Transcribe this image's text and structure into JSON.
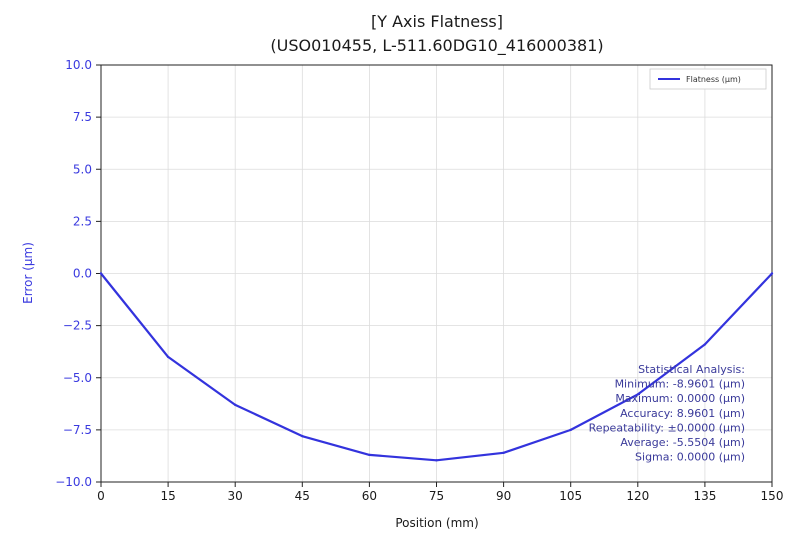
{
  "colors": {
    "series": "#3333dd",
    "y_axis_text": "#3a3adf",
    "stats_text": "#3a3a9a",
    "grid": "#dcdcdc",
    "frame": "#222222"
  },
  "chart_data": {
    "type": "line",
    "title": "[Y Axis Flatness]",
    "subtitle": "(USO010455, L-511.60DG10_416000381)",
    "xlabel": "Position (mm)",
    "ylabel": "Error (µm)",
    "xlim": [
      0,
      150
    ],
    "ylim": [
      -10,
      10
    ],
    "x_ticks": [
      0,
      15,
      30,
      45,
      60,
      75,
      90,
      105,
      120,
      135,
      150
    ],
    "y_ticks": [
      -10,
      -7.5,
      -5,
      -2.5,
      0,
      2.5,
      5,
      7.5,
      10
    ],
    "x_tick_labels": [
      "0",
      "15",
      "30",
      "45",
      "60",
      "75",
      "90",
      "105",
      "120",
      "135",
      "150"
    ],
    "y_tick_labels": [
      "−10.0",
      "−7.5",
      "−5.0",
      "−2.5",
      "0.0",
      "2.5",
      "5.0",
      "7.5",
      "10.0"
    ],
    "grid": true,
    "legend_position": "top-right",
    "series": [
      {
        "name": "Flatness (µm)",
        "x": [
          0,
          15,
          30,
          45,
          60,
          75,
          90,
          105,
          120,
          135,
          150
        ],
        "y": [
          0.0,
          -4.0,
          -6.3,
          -7.8,
          -8.7,
          -8.96,
          -8.6,
          -7.5,
          -5.8,
          -3.4,
          0.0
        ]
      }
    ],
    "annotation": {
      "position": "bottom-right",
      "lines": [
        "Statistical Analysis:",
        "Minimum: -8.9601 (µm)",
        "Maximum: 0.0000 (µm)",
        "Accuracy: 8.9601 (µm)",
        "Repeatability: ±0.0000 (µm)",
        "Average: -5.5504 (µm)",
        "Sigma: 0.0000 (µm)"
      ]
    }
  }
}
